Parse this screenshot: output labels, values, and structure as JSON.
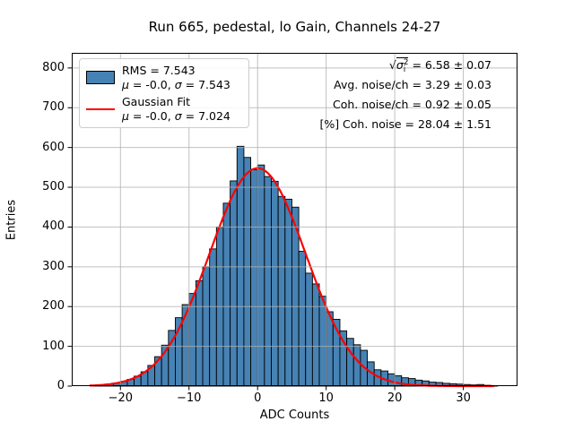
{
  "figure": {
    "title": "Run 665, pedestal, lo Gain, Channels 24-27"
  },
  "axes": {
    "xlabel": "ADC Counts",
    "ylabel": "Entries"
  },
  "legend": {
    "entry1": {
      "line1": "RMS = 7.543",
      "mu": "μ",
      "eq1": " = -0.0, ",
      "sigma": "σ",
      "eq2": " = 7.543"
    },
    "entry2": {
      "line1": "Gaussian Fit",
      "mu": "μ",
      "eq1": " = -0.0, ",
      "sigma": "σ",
      "eq2": " = 7.024"
    }
  },
  "annotations": {
    "line1": {
      "sqrt": "√",
      "sigma": "σ",
      "sub": "i",
      "sup": "2",
      "rest": " = 6.58 ± 0.07"
    },
    "line2": "Avg. noise/ch = 3.29 ± 0.03",
    "line3": "Coh. noise/ch = 0.92 ± 0.05",
    "line4": "[%] Coh. noise = 28.04 ± 1.51"
  },
  "chart_data": {
    "type": "bar",
    "subtype": "histogram",
    "title": "Run 665, pedestal, lo Gain, Channels 24-27",
    "xlabel": "ADC Counts",
    "ylabel": "Entries",
    "bin_start": -24,
    "bin_width": 1,
    "values": [
      2,
      3,
      5,
      8,
      12,
      17,
      25,
      36,
      52,
      74,
      103,
      140,
      172,
      205,
      233,
      265,
      300,
      345,
      400,
      460,
      516,
      603,
      575,
      544,
      556,
      527,
      515,
      477,
      470,
      450,
      339,
      284,
      257,
      226,
      187,
      168,
      139,
      120,
      104,
      90,
      61,
      41,
      38,
      31,
      26,
      21,
      19,
      15,
      13,
      10,
      9,
      7,
      6,
      5,
      4,
      3,
      4,
      2,
      1
    ],
    "xlim": [
      -27.1,
      37.9
    ],
    "ylim": [
      0,
      838
    ],
    "xticks": [
      -20,
      -10,
      0,
      10,
      20,
      30
    ],
    "yticks": [
      0,
      100,
      200,
      300,
      400,
      500,
      600,
      700,
      800
    ],
    "grid": true,
    "grid_color": "#b0b0b0",
    "bar_color": "#4682b4",
    "bar_edge": "#000000",
    "legend_entries": [
      "RMS = 7.543, μ = -0.0, σ = 7.543",
      "Gaussian Fit, μ = -0.0, σ = 7.024"
    ],
    "legend_position": "upper-left",
    "fit": {
      "type": "gaussian",
      "amplitude": 548,
      "mu": 0,
      "sigma": 7.024,
      "color": "#ff0000",
      "x_start": -24.5,
      "x_end": 34.5
    },
    "stats": {
      "sqrt_sigma_i2": "6.58 ± 0.07",
      "avg_noise_per_ch": "3.29 ± 0.03",
      "coh_noise_per_ch": "0.92 ± 0.05",
      "coh_noise_pct": "28.04 ± 1.51"
    }
  }
}
